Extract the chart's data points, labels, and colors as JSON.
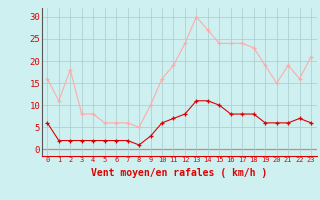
{
  "hours": [
    0,
    1,
    2,
    3,
    4,
    5,
    6,
    7,
    8,
    9,
    10,
    11,
    12,
    13,
    14,
    15,
    16,
    17,
    18,
    19,
    20,
    21,
    22,
    23
  ],
  "wind_avg": [
    6,
    2,
    2,
    2,
    2,
    2,
    2,
    2,
    1,
    3,
    6,
    7,
    8,
    11,
    11,
    10,
    8,
    8,
    8,
    6,
    6,
    6,
    7,
    6
  ],
  "wind_gust": [
    16,
    11,
    18,
    8,
    8,
    6,
    6,
    6,
    5,
    10,
    16,
    19,
    24,
    30,
    27,
    24,
    24,
    24,
    23,
    19,
    15,
    19,
    16,
    21
  ],
  "line_avg_color": "#dd0000",
  "line_gust_color": "#ffaaaa",
  "bg_color": "#cff0f0",
  "grid_color": "#aacccc",
  "axis_color": "#dd0000",
  "tick_color": "#dd0000",
  "xlabel": "Vent moyen/en rafales ( km/h )",
  "yticks": [
    0,
    5,
    10,
    15,
    20,
    25,
    30
  ],
  "ylim": [
    -1.5,
    32
  ],
  "xlim": [
    -0.5,
    23.5
  ]
}
